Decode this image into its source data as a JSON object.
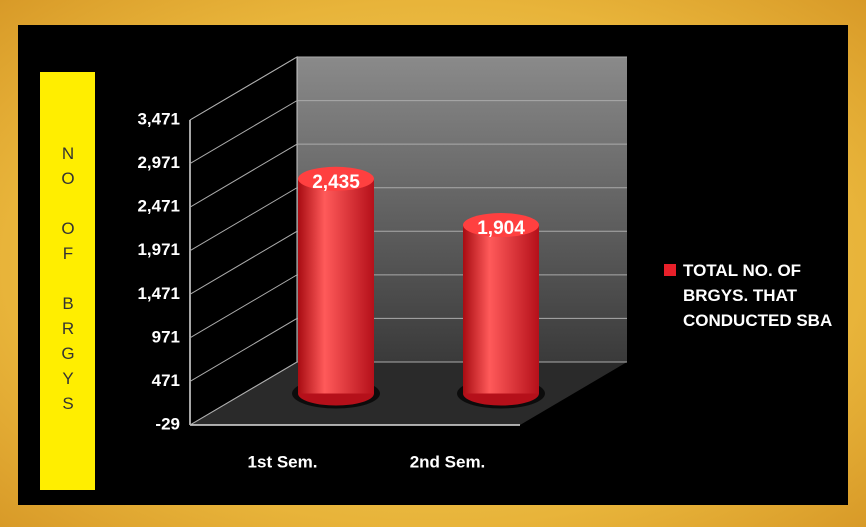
{
  "chart_data": {
    "type": "bar3d",
    "y_label": "NO OF BRGYS",
    "categories": [
      "1st Sem.",
      "2nd Sem."
    ],
    "series": [
      {
        "name": "TOTAL NO. OF BRGYS. THAT CONDUCTED SBA",
        "color": "#e8202a",
        "values": [
          2435,
          1904
        ],
        "value_labels": [
          "2,435",
          "1,904"
        ]
      }
    ],
    "ylim": [
      -29,
      3471
    ],
    "yticks": [
      -29,
      471,
      971,
      {
        "value": 1471,
        "label": "1,471"
      },
      {
        "value": 1971,
        "label": "1,971"
      },
      {
        "value": 2471,
        "label": "2,471"
      },
      {
        "value": 2971,
        "label": "2,971"
      },
      {
        "value": 3471,
        "label": "3,471"
      }
    ],
    "legend": "right"
  }
}
